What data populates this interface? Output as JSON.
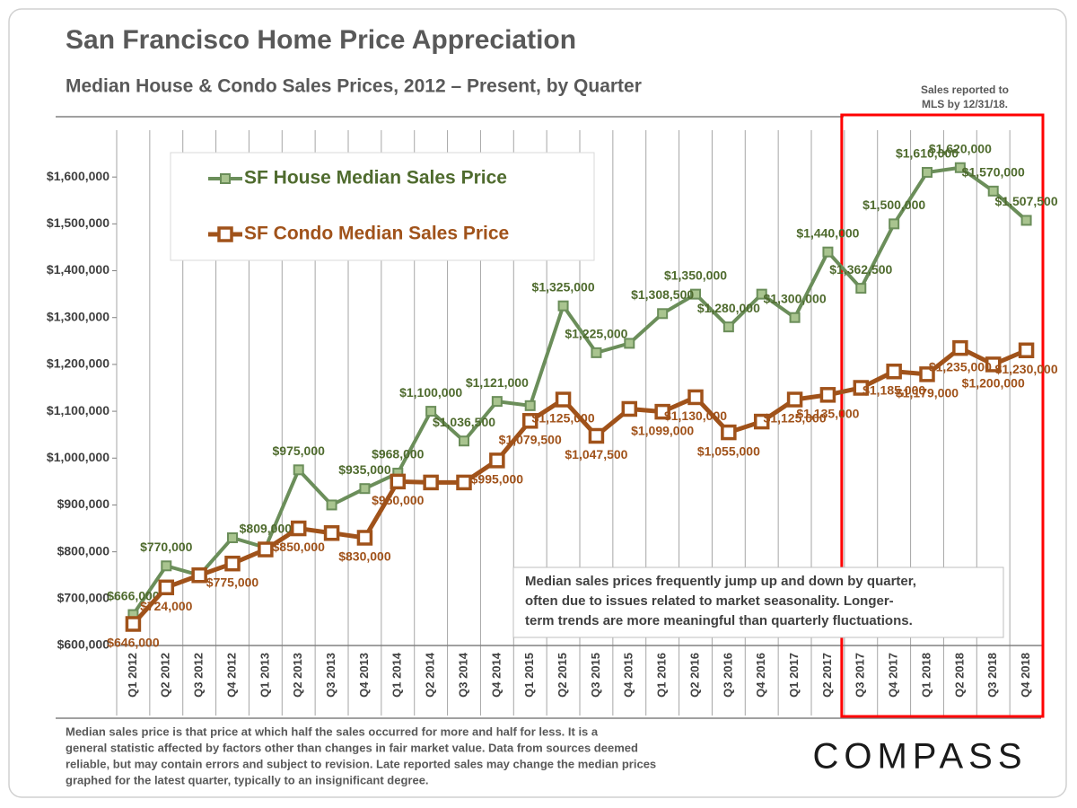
{
  "chart_data": {
    "type": "line",
    "title": "San Francisco Home Price Appreciation",
    "subtitle": "Median House & Condo Sales Prices, 2012 – Present, by Quarter",
    "note": [
      "Sales reported to",
      "MLS by 12/31/18."
    ],
    "annotation": [
      "Median sales prices frequently jump up and down by quarter,",
      "often due to issues related to market seasonality. Longer-",
      "term trends are more meaningful than quarterly fluctuations."
    ],
    "footnote": [
      "Median sales price is that price at which half the sales occurred for more and half for less. It is a",
      "general statistic affected by factors other than changes in fair market value. Data from sources deemed",
      "reliable, but may contain errors and subject to revision. Late reported sales may change the median prices",
      "graphed for the latest quarter, typically to an insignificant degree."
    ],
    "logo": "COMPASS",
    "categories": [
      "Q1 2012",
      "Q2 2012",
      "Q3 2012",
      "Q4 2012",
      "Q1 2013",
      "Q2 2013",
      "Q3 2013",
      "Q4 2013",
      "Q1 2014",
      "Q2 2014",
      "Q3 2014",
      "Q4 2014",
      "Q1 2015",
      "Q2 2015",
      "Q3 2015",
      "Q4 2015",
      "Q1 2016",
      "Q2 2016",
      "Q3 2016",
      "Q4 2016",
      "Q1 2017",
      "Q2 2017",
      "Q3 2017",
      "Q4 2017",
      "Q1 2018",
      "Q2 2018",
      "Q3 2018",
      "Q4 2018"
    ],
    "series": [
      {
        "name": "SF House Median Sales Price",
        "color": "#6b8e5a",
        "marker_fill": "#a9c48f",
        "values": [
          666000,
          770000,
          750000,
          830000,
          809000,
          975000,
          900000,
          935000,
          968000,
          1100000,
          1036500,
          1121000,
          1112000,
          1325000,
          1225000,
          1245000,
          1308500,
          1350000,
          1280000,
          1350000,
          1300000,
          1440000,
          1362500,
          1500000,
          1610000,
          1620000,
          1570000,
          1507500
        ],
        "value_labels": [
          "$666,000",
          "$770,000",
          null,
          null,
          "$809,000",
          "$975,000",
          null,
          "$935,000",
          "$968,000",
          "$1,100,000",
          "$1,036,500",
          "$1,121,000",
          null,
          "$1,325,000",
          "$1,225,000",
          null,
          "$1,308,500",
          "$1,350,000",
          "$1,280,000",
          null,
          "$1,300,000",
          "$1,440,000",
          "$1,362,500",
          "$1,500,000",
          "$1,610,000",
          "$1,620,000",
          "$1,570,000",
          "$1,507,500"
        ]
      },
      {
        "name": "SF Condo Median Sales Price",
        "color": "#a0521a",
        "marker_fill": "#ffffff",
        "values": [
          646000,
          724000,
          750000,
          775000,
          805000,
          850000,
          840000,
          830000,
          950000,
          948000,
          948000,
          995000,
          1079500,
          1125000,
          1047500,
          1105000,
          1099000,
          1130000,
          1055000,
          1078000,
          1125000,
          1135000,
          1150000,
          1185000,
          1179000,
          1235000,
          1200000,
          1230000
        ],
        "value_labels": [
          "$646,000",
          "$724,000",
          null,
          "$775,000",
          null,
          "$850,000",
          null,
          "$830,000",
          "$950,000",
          null,
          null,
          "$995,000",
          "$1,079,500",
          "$1,125,000",
          "$1,047,500",
          null,
          "$1,099,000",
          "$1,130,000",
          "$1,055,000",
          null,
          "$1,125,000",
          "$1,135,000",
          null,
          "$1,185,000",
          "$1,179,000",
          "$1,235,000",
          "$1,200,000",
          "$1,230,000"
        ]
      }
    ],
    "ylim": [
      600000,
      1700000
    ],
    "yticks": [
      {
        "value": 600000,
        "label": "$600,000"
      },
      {
        "value": 700000,
        "label": "$700,000"
      },
      {
        "value": 800000,
        "label": "$800,000"
      },
      {
        "value": 900000,
        "label": "$900,000"
      },
      {
        "value": 1000000,
        "label": "$1,000,000"
      },
      {
        "value": 1100000,
        "label": "$1,100,000"
      },
      {
        "value": 1200000,
        "label": "$1,200,000"
      },
      {
        "value": 1300000,
        "label": "$1,300,000"
      },
      {
        "value": 1400000,
        "label": "$1,400,000"
      },
      {
        "value": 1500000,
        "label": "$1,500,000"
      },
      {
        "value": 1600000,
        "label": "$1,600,000"
      }
    ],
    "grid": "x"
  }
}
